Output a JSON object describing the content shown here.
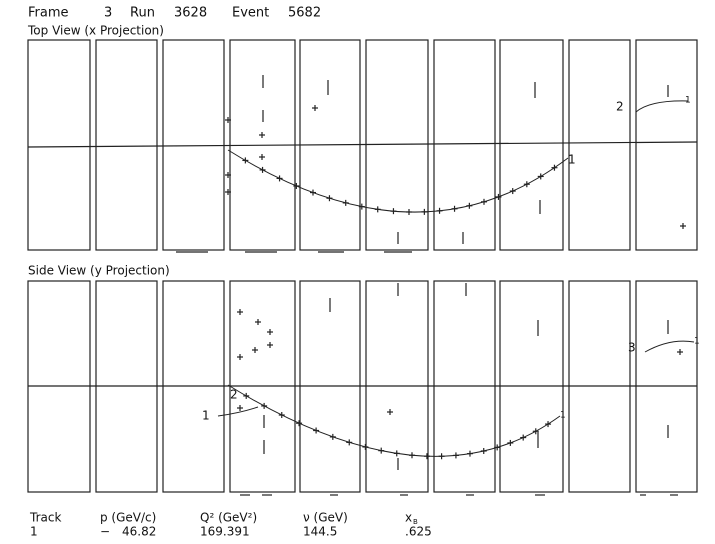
{
  "header": {
    "frame_label": "Frame",
    "frame": "3",
    "run_label": "Run",
    "run": "3628",
    "event_label": "Event",
    "event": "5682"
  },
  "top_view": {
    "title": "Top View (x Projection)",
    "labels": [
      "1",
      "2",
      "1"
    ]
  },
  "side_view": {
    "title": "Side View (y Projection)",
    "labels": [
      "1",
      "2",
      "1",
      "3",
      "1"
    ]
  },
  "table": {
    "headers": [
      "Track",
      "p (GeV/c)",
      "Q² (GeV²)",
      "ν (GeV)",
      "x"
    ],
    "x_subscript": "B",
    "rows": [
      [
        "1",
        "−",
        "46.82",
        "169.391",
        "144.5",
        ".625"
      ]
    ]
  }
}
